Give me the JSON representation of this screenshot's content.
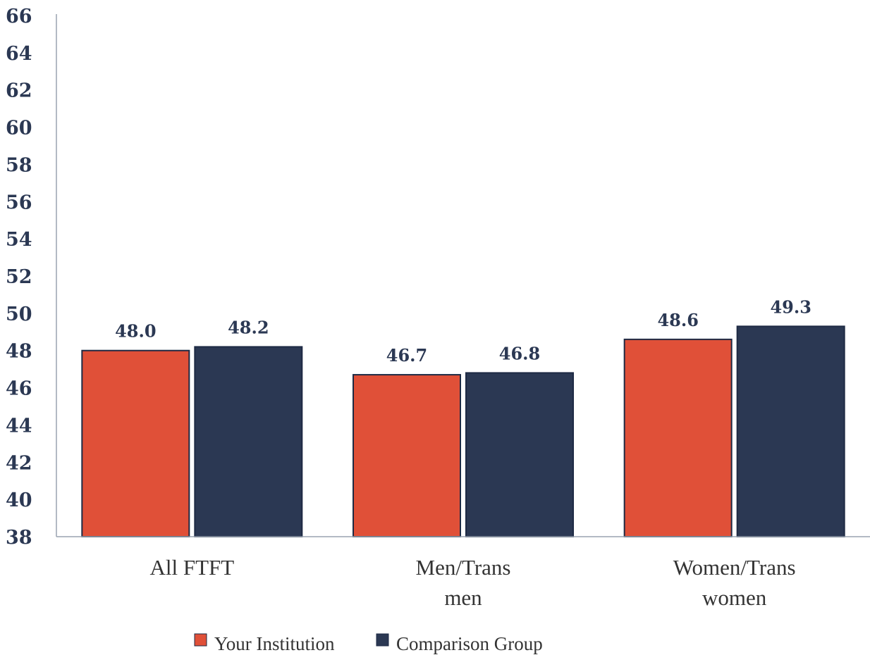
{
  "chart_data": {
    "type": "bar",
    "title": "",
    "xlabel": "",
    "ylabel": "",
    "categories": [
      [
        "All FTFT"
      ],
      [
        "Men/Trans",
        "men"
      ],
      [
        "Women/Trans",
        "women"
      ]
    ],
    "series": [
      {
        "name": "Your Institution",
        "values": [
          48.0,
          46.7,
          48.6
        ],
        "labels": [
          "48.0",
          "46.7",
          "48.6"
        ],
        "color": "#e05038"
      },
      {
        "name": "Comparison Group",
        "values": [
          48.2,
          46.8,
          49.3
        ],
        "labels": [
          "48.2",
          "46.8",
          "49.3"
        ],
        "color": "#2b3853"
      }
    ],
    "ylim": [
      38,
      66
    ],
    "yticks": [
      "38",
      "40",
      "42",
      "44",
      "46",
      "48",
      "50",
      "52",
      "54",
      "56",
      "58",
      "60",
      "62",
      "64",
      "66"
    ],
    "grid": false,
    "legend_position": "bottom"
  }
}
